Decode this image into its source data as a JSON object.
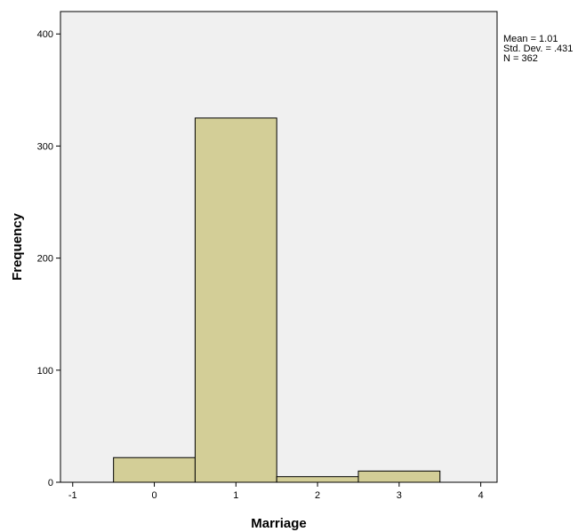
{
  "chart_data": {
    "type": "bar",
    "subtype": "histogram",
    "title": "",
    "xlabel": "Marriage",
    "ylabel": "Frequency",
    "xlim": [
      -1.15,
      4.2
    ],
    "ylim": [
      0,
      420
    ],
    "x_ticks": [
      "-1",
      "0",
      "1",
      "2",
      "3",
      "4"
    ],
    "y_ticks": [
      "0",
      "100",
      "200",
      "300",
      "400"
    ],
    "bins": [
      {
        "x0": -0.5,
        "x1": 0.5,
        "value": 22
      },
      {
        "x0": 0.5,
        "x1": 1.5,
        "value": 325
      },
      {
        "x0": 1.5,
        "x1": 2.5,
        "value": 5
      },
      {
        "x0": 2.5,
        "x1": 3.5,
        "value": 10
      }
    ],
    "stats": [
      "Mean = 1.01",
      "Std. Dev. = .431",
      "N = 362"
    ],
    "legend_position": "right",
    "grid": false,
    "colors": {
      "plot_background": "#f0f0f0",
      "bar_fill": "#d3ce97",
      "bar_stroke": "#000000",
      "axis": "#000000"
    }
  }
}
